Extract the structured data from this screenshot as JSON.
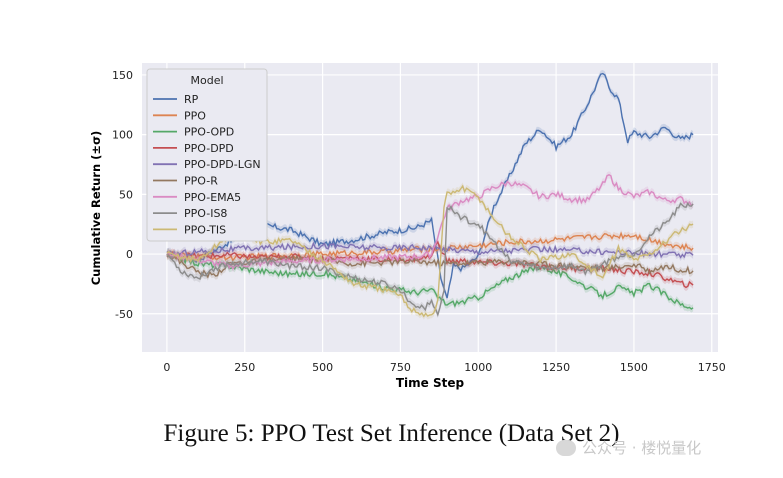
{
  "chart_data": {
    "type": "line",
    "title": "",
    "xlabel": "Time Step",
    "ylabel": "Cumulative Return (±σ)",
    "xlim": [
      -80,
      1770
    ],
    "ylim": [
      -82,
      160
    ],
    "xticks": [
      0,
      250,
      500,
      750,
      1000,
      1250,
      1500,
      1750
    ],
    "yticks": [
      -50,
      0,
      50,
      100,
      150
    ],
    "grid": true,
    "legend_title": "Model",
    "legend_position": "top-left",
    "series": [
      {
        "name": "RP",
        "color": "#4c72b0",
        "x": [
          0,
          100,
          200,
          300,
          400,
          500,
          600,
          700,
          800,
          850,
          880,
          900,
          920,
          950,
          1000,
          1050,
          1100,
          1150,
          1200,
          1250,
          1300,
          1350,
          1380,
          1400,
          1420,
          1450,
          1480,
          1500,
          1550,
          1600,
          1650,
          1690
        ],
        "values": [
          0,
          -5,
          10,
          25,
          20,
          8,
          12,
          18,
          22,
          28,
          -20,
          -38,
          -10,
          -12,
          -2,
          40,
          65,
          92,
          105,
          90,
          100,
          125,
          142,
          152,
          140,
          130,
          95,
          102,
          98,
          106,
          96,
          100
        ]
      },
      {
        "name": "PPO",
        "color": "#dd8452",
        "x": [
          0,
          100,
          200,
          300,
          400,
          500,
          600,
          700,
          800,
          900,
          1000,
          1100,
          1200,
          1300,
          1400,
          1500,
          1550,
          1600,
          1650,
          1690
        ],
        "values": [
          0,
          -2,
          -3,
          -2,
          -1,
          0,
          1,
          2,
          4,
          5,
          7,
          10,
          11,
          13,
          15,
          16,
          12,
          9,
          6,
          5
        ]
      },
      {
        "name": "PPO-OPD",
        "color": "#55a868",
        "x": [
          0,
          100,
          200,
          300,
          400,
          500,
          600,
          700,
          800,
          850,
          870,
          900,
          950,
          1000,
          1100,
          1200,
          1300,
          1350,
          1400,
          1450,
          1500,
          1550,
          1600,
          1650,
          1690
        ],
        "values": [
          0,
          -8,
          -10,
          -14,
          -17,
          -16,
          -22,
          -28,
          -32,
          -30,
          -36,
          -42,
          -40,
          -36,
          -20,
          -10,
          -20,
          -28,
          -35,
          -28,
          -33,
          -26,
          -34,
          -42,
          -45
        ]
      },
      {
        "name": "PPO-DPD",
        "color": "#c44e52",
        "x": [
          0,
          100,
          200,
          300,
          400,
          500,
          600,
          700,
          800,
          850,
          870,
          900,
          950,
          1000,
          1100,
          1200,
          1300,
          1400,
          1500,
          1550,
          1600,
          1650,
          1690
        ],
        "values": [
          0,
          -2,
          -1,
          -3,
          -2,
          -4,
          -3,
          -5,
          -4,
          -2,
          10,
          -6,
          -6,
          -7,
          -8,
          -10,
          -12,
          -12,
          -15,
          -16,
          -20,
          -25,
          -26
        ]
      },
      {
        "name": "PPO-DPD-LGN",
        "color": "#8172b3",
        "x": [
          0,
          100,
          200,
          300,
          400,
          500,
          600,
          700,
          800,
          900,
          1000,
          1100,
          1200,
          1300,
          1400,
          1500,
          1550,
          1600,
          1650,
          1690
        ],
        "values": [
          0,
          2,
          4,
          5,
          6,
          7,
          6,
          5,
          6,
          4,
          2,
          3,
          4,
          3,
          2,
          1,
          0,
          0,
          -1,
          -1
        ]
      },
      {
        "name": "PPO-R",
        "color": "#937860",
        "x": [
          0,
          100,
          150,
          200,
          300,
          400,
          500,
          600,
          700,
          800,
          900,
          1000,
          1100,
          1200,
          1300,
          1400,
          1500,
          1550,
          1600,
          1650,
          1690
        ],
        "values": [
          0,
          -15,
          -18,
          -8,
          -6,
          -4,
          -5,
          -8,
          -7,
          -6,
          -8,
          -7,
          -6,
          -8,
          -10,
          -12,
          -9,
          -14,
          -10,
          -13,
          -14
        ]
      },
      {
        "name": "PPO-EMA5",
        "color": "#da8bc3",
        "x": [
          0,
          100,
          200,
          300,
          400,
          500,
          600,
          700,
          800,
          850,
          900,
          950,
          1000,
          1050,
          1100,
          1150,
          1200,
          1250,
          1300,
          1350,
          1400,
          1420,
          1450,
          1500,
          1550,
          1600,
          1650,
          1690
        ],
        "values": [
          0,
          -5,
          -10,
          -8,
          -6,
          -5,
          -4,
          -3,
          -2,
          0,
          38,
          45,
          48,
          56,
          60,
          56,
          48,
          50,
          46,
          45,
          58,
          66,
          55,
          48,
          52,
          45,
          46,
          42
        ]
      },
      {
        "name": "PPO-IS8",
        "color": "#8c8c8c",
        "x": [
          0,
          50,
          100,
          150,
          200,
          300,
          400,
          500,
          600,
          700,
          750,
          780,
          800,
          830,
          850,
          870,
          890,
          900,
          950,
          1000,
          1050,
          1100,
          1200,
          1300,
          1350,
          1400,
          1450,
          1500,
          1550,
          1600,
          1650,
          1690
        ],
        "values": [
          0,
          -15,
          -20,
          -12,
          -8,
          -6,
          -10,
          -12,
          -20,
          -25,
          -30,
          -40,
          -42,
          -45,
          -40,
          -50,
          -30,
          40,
          30,
          25,
          10,
          -5,
          -12,
          -10,
          -15,
          -8,
          -2,
          0,
          15,
          25,
          40,
          42
        ]
      },
      {
        "name": "PPO-TIS",
        "color": "#ccb974",
        "x": [
          0,
          100,
          200,
          250,
          300,
          400,
          500,
          600,
          700,
          750,
          780,
          800,
          850,
          870,
          890,
          900,
          950,
          1000,
          1050,
          1100,
          1200,
          1300,
          1350,
          1400,
          1450,
          1500,
          1550,
          1600,
          1650,
          1690
        ],
        "values": [
          0,
          -5,
          15,
          18,
          10,
          12,
          -5,
          -25,
          -30,
          -35,
          -45,
          -48,
          -52,
          -40,
          40,
          50,
          55,
          48,
          30,
          15,
          -5,
          0,
          -10,
          -20,
          5,
          -5,
          0,
          10,
          20,
          25
        ]
      }
    ]
  },
  "caption": "Figure 5: PPO Test Set Inference (Data Set 2)",
  "watermark": "公众号 · 楼悦量化"
}
